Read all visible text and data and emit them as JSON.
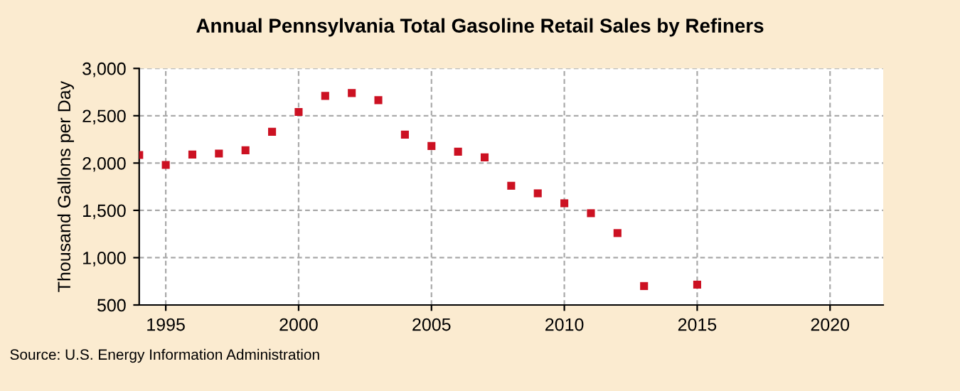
{
  "chart_data": {
    "type": "scatter",
    "title": "Annual Pennsylvania Total Gasoline Retail Sales by Refiners",
    "ylabel": "Thousand Gallons per Day",
    "x": [
      1994,
      1995,
      1996,
      1997,
      1998,
      1999,
      2000,
      2001,
      2002,
      2003,
      2004,
      2005,
      2006,
      2007,
      2008,
      2009,
      2010,
      2011,
      2012,
      2013,
      2015
    ],
    "series": [
      {
        "color": "#cc1122",
        "values": [
          2085,
          1980,
          2090,
          2100,
          2135,
          2330,
          2540,
          2710,
          2740,
          2665,
          2300,
          2180,
          2120,
          2060,
          1760,
          1680,
          1575,
          1470,
          1260,
          700,
          715
        ]
      }
    ],
    "xlim": [
      1994,
      2022
    ],
    "xticks": [
      1995,
      2000,
      2005,
      2010,
      2015,
      2020
    ],
    "ylim": [
      500,
      3000
    ],
    "yticks": [
      {
        "value": 500,
        "label": "500"
      },
      {
        "value": 1000,
        "label": "1,000"
      },
      {
        "value": 1500,
        "label": "1,500"
      },
      {
        "value": 2000,
        "label": "2,000"
      },
      {
        "value": 2500,
        "label": "2,500"
      },
      {
        "value": 3000,
        "label": "3,000"
      }
    ],
    "grid": true,
    "marker": "square",
    "annotations": [
      "Source: U.S. Energy Information Administration"
    ]
  }
}
